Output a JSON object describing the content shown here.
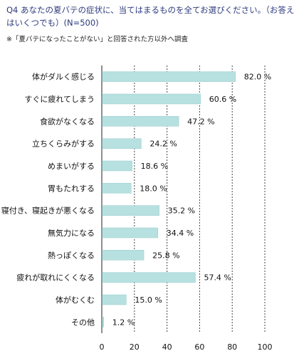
{
  "header": {
    "question": "Q4 あなたの夏バテの症状に、当てはまるものを全てお選びください。（お答えはいくつでも）(N=500)",
    "note": "※「夏バテになったことがない」と回答された方以外へ調査"
  },
  "chart_data": {
    "type": "bar",
    "orientation": "horizontal",
    "title": "",
    "xlabel": "",
    "ylabel": "",
    "categories": [
      "体がダルく感じる",
      "すぐに疲れてしまう",
      "食欲がなくなる",
      "立ちくらみがする",
      "めまいがする",
      "胃もたれする",
      "寝付き、寝起きが悪くなる",
      "無気力になる",
      "熱っぽくなる",
      "疲れが取れにくくなる",
      "体がむくむ",
      "その他"
    ],
    "values": [
      82.0,
      60.6,
      47.2,
      24.2,
      18.6,
      18.0,
      35.2,
      34.4,
      25.8,
      57.4,
      15.0,
      1.2
    ],
    "value_labels": [
      "82.0 %",
      "60.6 %",
      "47.2 %",
      "24.2 %",
      "18.6 %",
      "18.0 %",
      "35.2 %",
      "34.4 %",
      "25.8 %",
      "57.4 %",
      "15.0 %",
      "1.2 %"
    ],
    "xlim": [
      0,
      100
    ],
    "xticks": [
      "0",
      "20",
      "40",
      "60",
      "80",
      "100"
    ],
    "grid": true,
    "legend": "none",
    "colors": {
      "bar": "#b7e0e0",
      "bar_edge": "#9ccccc",
      "grid": "#444444",
      "axis": "#222222"
    }
  }
}
